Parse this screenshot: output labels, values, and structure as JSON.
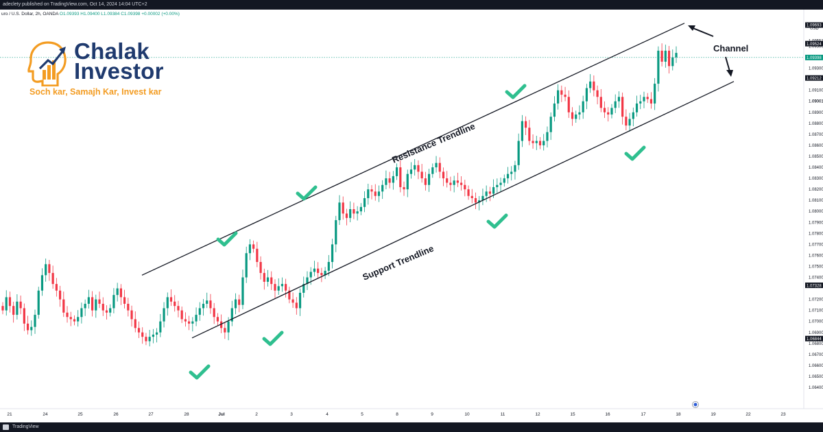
{
  "header": {
    "publisher_text": "adeclety published on TradingView.com, Oct 14, 2024 14:04 UTC+2"
  },
  "ohlc": {
    "symbol_text": "uro / U.S. Dollar, 2h, OANDA",
    "open": "O1.09393",
    "high": "H1.09400",
    "low": "L1.09384",
    "close": "C1.09398",
    "change": "+0.00002 (+0.00%)"
  },
  "logo": {
    "name_line1": "Chalak",
    "name_line2": "Investor",
    "tagline": "Soch kar, Samajh Kar, Invest kar",
    "colors": {
      "orange": "#f39c22",
      "navy": "#1f3a6e"
    }
  },
  "footer": {
    "brand": "TradingView"
  },
  "chart_data": {
    "type": "candlestick",
    "currency_label": "USD",
    "x_tick_labels": [
      "21",
      "24",
      "25",
      "26",
      "27",
      "28",
      "Jul",
      "2",
      "3",
      "4",
      "5",
      "8",
      "9",
      "10",
      "11",
      "12",
      "15",
      "16",
      "17",
      "18",
      "19",
      "22",
      "23"
    ],
    "y_tick_labels": [
      "1.09551",
      "1.09500",
      "1.09300",
      "1.09100",
      "1.09001",
      "1.09001",
      "1.08900",
      "1.08800",
      "1.08700",
      "1.08600",
      "1.08500",
      "1.08400",
      "1.08300",
      "1.08200",
      "1.08100",
      "1.08000",
      "1.07900",
      "1.07800",
      "1.07700",
      "1.07600",
      "1.07500",
      "1.07400",
      "1.07200",
      "1.07100",
      "1.07000",
      "1.06900",
      "1.06800",
      "1.06700",
      "1.06600",
      "1.06500",
      "1.06400"
    ],
    "price_badges": [
      {
        "text": "1.09693",
        "kind": "dark"
      },
      {
        "text": "1.09524",
        "kind": "dark"
      },
      {
        "text": "1.09398",
        "kind": "current"
      },
      {
        "text": "1.09212",
        "kind": "dark"
      },
      {
        "text": "1.07328",
        "kind": "dark"
      },
      {
        "text": "1.06844",
        "kind": "dark"
      }
    ],
    "annotations": {
      "resistance_label": "Resistance Trendline",
      "support_label": "Support Trendline",
      "channel_label": "Channel"
    },
    "trendlines": {
      "resistance": {
        "start": {
          "x": "Jun 26",
          "y": 1.0742
        },
        "end": {
          "x": "Jul 17",
          "y": 1.0971
        }
      },
      "support": {
        "start": {
          "x": "Jun 28",
          "y": 1.0685
        },
        "end": {
          "x": "Jul 18",
          "y": 1.0918
        }
      }
    },
    "closes": [
      1.071,
      1.0722,
      1.0714,
      1.0706,
      1.0718,
      1.0712,
      1.0698,
      1.0692,
      1.0695,
      1.0706,
      1.0728,
      1.0742,
      1.0752,
      1.0744,
      1.0734,
      1.0728,
      1.072,
      1.0708,
      1.0704,
      1.0702,
      1.07,
      1.0704,
      1.0712,
      1.0716,
      1.0722,
      1.071,
      1.072,
      1.0716,
      1.071,
      1.0708,
      1.0712,
      1.0724,
      1.073,
      1.0722,
      1.0716,
      1.071,
      1.0702,
      1.0694,
      1.069,
      1.0686,
      1.0682,
      1.0686,
      1.0688,
      1.069,
      1.07,
      1.0712,
      1.0722,
      1.0718,
      1.0714,
      1.071,
      1.0702,
      1.07,
      1.0698,
      1.07,
      1.0706,
      1.0712,
      1.0716,
      1.0719,
      1.0712,
      1.0704,
      1.07,
      1.0694,
      1.069,
      1.07,
      1.0712,
      1.072,
      1.0715,
      1.074,
      1.0762,
      1.077,
      1.0766,
      1.0754,
      1.0744,
      1.0736,
      1.074,
      1.0734,
      1.0728,
      1.0732,
      1.0734,
      1.0728,
      1.072,
      1.0717,
      1.0712,
      1.0726,
      1.0734,
      1.074,
      1.0745,
      1.0748,
      1.0744,
      1.0742,
      1.0746,
      1.0754,
      1.077,
      1.0792,
      1.0808,
      1.0798,
      1.0794,
      1.0802,
      1.0798,
      1.08,
      1.0804,
      1.0812,
      1.082,
      1.0818,
      1.0814,
      1.0818,
      1.0824,
      1.083,
      1.0826,
      1.0832,
      1.084,
      1.0822,
      1.082,
      1.0834,
      1.0838,
      1.0842,
      1.0836,
      1.083,
      1.0824,
      1.0834,
      1.084,
      1.0844,
      1.0836,
      1.083,
      1.0826,
      1.0824,
      1.0828,
      1.0826,
      1.0824,
      1.082,
      1.0814,
      1.0812,
      1.0808,
      1.081,
      1.0814,
      1.0818,
      1.0816,
      1.0822,
      1.0824,
      1.0826,
      1.083,
      1.0834,
      1.0836,
      1.0842,
      1.0864,
      1.0882,
      1.0876,
      1.0864,
      1.0862,
      1.0864,
      1.086,
      1.0864,
      1.0872,
      1.0886,
      1.0898,
      1.091,
      1.0906,
      1.0904,
      1.089,
      1.0884,
      1.0888,
      1.089,
      1.09,
      1.0912,
      1.0918,
      1.091,
      1.0904,
      1.0894,
      1.089,
      1.0888,
      1.0894,
      1.09,
      1.0904,
      1.0886,
      1.0878,
      1.0884,
      1.089,
      1.0898,
      1.09,
      1.0904,
      1.0902,
      1.0898,
      1.0916,
      1.0946,
      1.0936,
      1.0946,
      1.0932,
      1.094,
      1.0944
    ]
  }
}
